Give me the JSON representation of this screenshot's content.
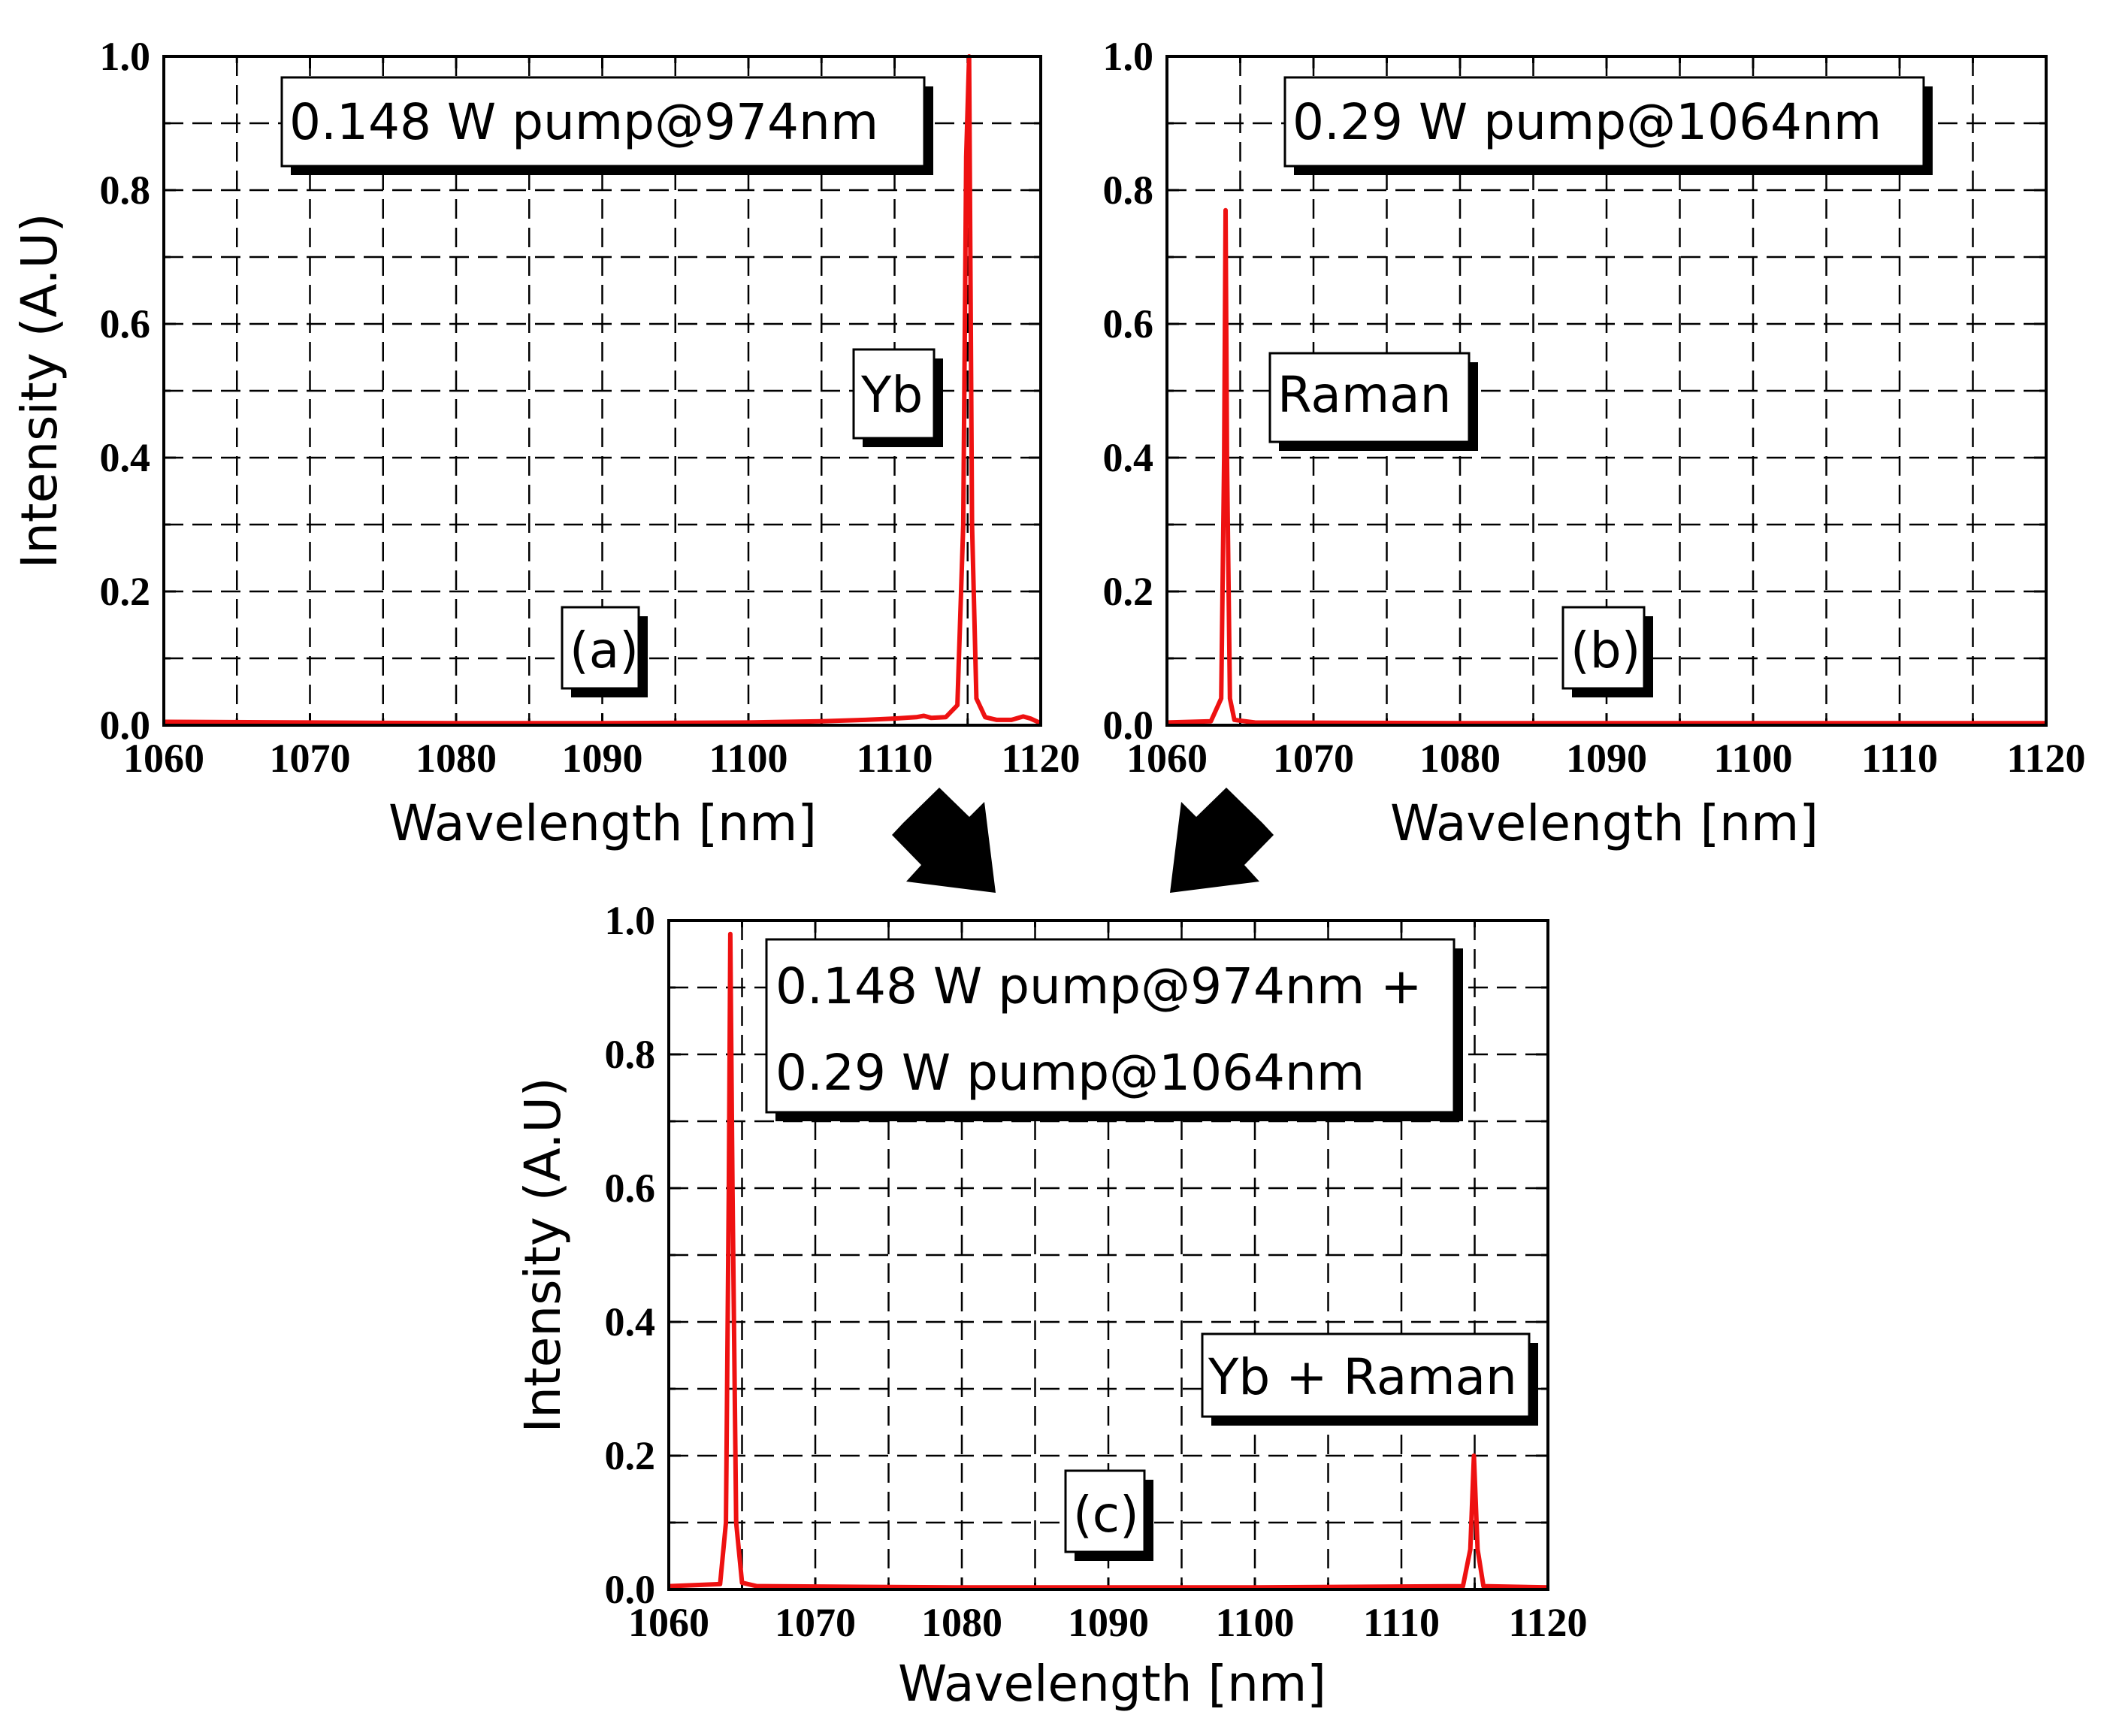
{
  "chart_data": [
    {
      "id": "a",
      "type": "line",
      "xlabel": "Wavelength [nm]",
      "ylabel": "Intensity (A.U)",
      "xlim": [
        1060,
        1120
      ],
      "ylim": [
        0,
        1.0
      ],
      "xticks": [
        "1060",
        "1070",
        "1080",
        "1090",
        "1100",
        "1110",
        "1120"
      ],
      "yticks": [
        "0.0",
        "0.2",
        "0.4",
        "0.6",
        "0.8",
        "1.0"
      ],
      "grid": true,
      "annotations": [
        "0.148 W pump@974nm",
        "Yb",
        "(a)"
      ],
      "series": [
        {
          "color": "#ee1111",
          "x": [
            1060,
            1070,
            1080,
            1090,
            1100,
            1105,
            1108,
            1110,
            1111.5,
            1112,
            1112.5,
            1113.5,
            1114.3,
            1114.7,
            1114.9,
            1115.1,
            1115.3,
            1115.6,
            1116.2,
            1117,
            1118,
            1118.8,
            1119.3,
            1120
          ],
          "y": [
            0.005,
            0.004,
            0.003,
            0.003,
            0.004,
            0.006,
            0.008,
            0.01,
            0.012,
            0.014,
            0.011,
            0.012,
            0.03,
            0.3,
            0.85,
            1.0,
            0.3,
            0.04,
            0.012,
            0.008,
            0.008,
            0.013,
            0.01,
            0.003
          ]
        }
      ]
    },
    {
      "id": "b",
      "type": "line",
      "xlabel": "Wavelength [nm]",
      "ylabel": "",
      "xlim": [
        1060,
        1120
      ],
      "ylim": [
        0,
        1.0
      ],
      "xticks": [
        "1060",
        "1070",
        "1080",
        "1090",
        "1100",
        "1110",
        "1120"
      ],
      "yticks": [
        "0.0",
        "0.2",
        "0.4",
        "0.6",
        "0.8",
        "1.0"
      ],
      "grid": true,
      "annotations": [
        "0.29 W pump@1064nm",
        "Raman",
        "(b)"
      ],
      "series": [
        {
          "color": "#ee1111",
          "x": [
            1060,
            1063,
            1063.7,
            1063.9,
            1064.0,
            1064.1,
            1064.3,
            1064.6,
            1066,
            1080,
            1100,
            1120
          ],
          "y": [
            0.004,
            0.006,
            0.04,
            0.4,
            0.77,
            0.4,
            0.04,
            0.008,
            0.004,
            0.003,
            0.003,
            0.003
          ]
        }
      ]
    },
    {
      "id": "c",
      "type": "line",
      "xlabel": "Wavelength [nm]",
      "ylabel": "Intensity (A.U)",
      "xlim": [
        1060,
        1120
      ],
      "ylim": [
        0,
        1.0
      ],
      "xticks": [
        "1060",
        "1070",
        "1080",
        "1090",
        "1100",
        "1110",
        "1120"
      ],
      "yticks": [
        "0.0",
        "0.2",
        "0.4",
        "0.6",
        "0.8",
        "1.0"
      ],
      "grid": true,
      "annotations": [
        "0.148 W pump@974nm +",
        "0.29 W pump@1064nm",
        "Yb + Raman",
        "(c)"
      ],
      "series": [
        {
          "color": "#ee1111",
          "x": [
            1060,
            1063.5,
            1063.9,
            1064.1,
            1064.2,
            1064.35,
            1064.6,
            1065.0,
            1066,
            1080,
            1100,
            1114.2,
            1114.7,
            1114.95,
            1115.2,
            1115.6,
            1120
          ],
          "y": [
            0.005,
            0.008,
            0.1,
            0.6,
            0.98,
            0.6,
            0.1,
            0.01,
            0.005,
            0.003,
            0.003,
            0.005,
            0.06,
            0.2,
            0.06,
            0.005,
            0.003
          ]
        }
      ]
    }
  ]
}
